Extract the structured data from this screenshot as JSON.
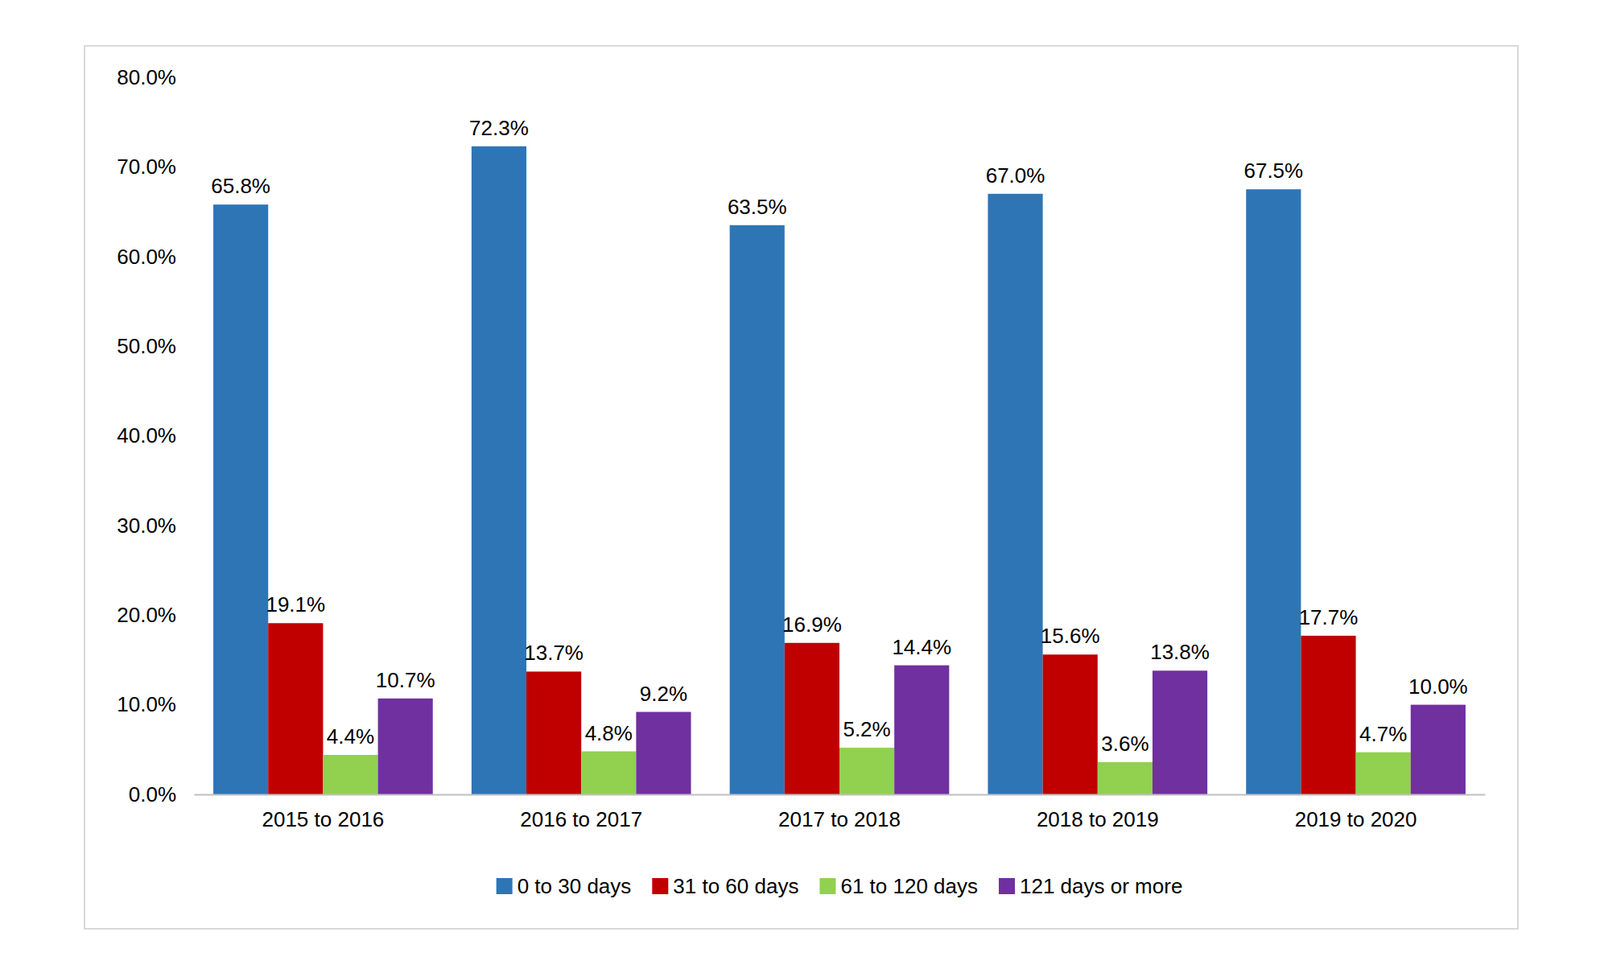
{
  "chart_data": {
    "type": "bar",
    "categories": [
      "2015 to 2016",
      "2016 to 2017",
      "2017 to 2018",
      "2018 to 2019",
      "2019 to 2020"
    ],
    "series": [
      {
        "name": "0 to 30 days",
        "color": "#2e75b6",
        "values": [
          65.8,
          72.3,
          63.5,
          67.0,
          67.5
        ],
        "value_labels": [
          "65.8%",
          "72.3%",
          "63.5%",
          "67.0%",
          "67.5%"
        ]
      },
      {
        "name": "31 to 60 days",
        "color": "#c00000",
        "values": [
          19.1,
          13.7,
          16.9,
          15.6,
          17.7
        ],
        "value_labels": [
          "19.1%",
          "13.7%",
          "16.9%",
          "15.6%",
          "17.7%"
        ]
      },
      {
        "name": "61 to 120 days",
        "color": "#92d050",
        "values": [
          4.4,
          4.8,
          5.2,
          3.6,
          4.7
        ],
        "value_labels": [
          "4.4%",
          "4.8%",
          "5.2%",
          "3.6%",
          "4.7%"
        ]
      },
      {
        "name": "121 days or more",
        "color": "#7030a0",
        "values": [
          10.7,
          9.2,
          14.4,
          13.8,
          10.0
        ],
        "value_labels": [
          "10.7%",
          "9.2%",
          "14.4%",
          "13.8%",
          "10.0%"
        ]
      }
    ],
    "ylim": [
      0,
      80
    ],
    "yticks": [
      {
        "value": 0,
        "label": "0.0%"
      },
      {
        "value": 10,
        "label": "10.0%"
      },
      {
        "value": 20,
        "label": "20.0%"
      },
      {
        "value": 30,
        "label": "30.0%"
      },
      {
        "value": 40,
        "label": "40.0%"
      },
      {
        "value": 50,
        "label": "50.0%"
      },
      {
        "value": 60,
        "label": "60.0%"
      },
      {
        "value": 70,
        "label": "70.0%"
      },
      {
        "value": 80,
        "label": "80.0%"
      }
    ],
    "grid": false,
    "legend": "bottom",
    "data_labels": true
  }
}
